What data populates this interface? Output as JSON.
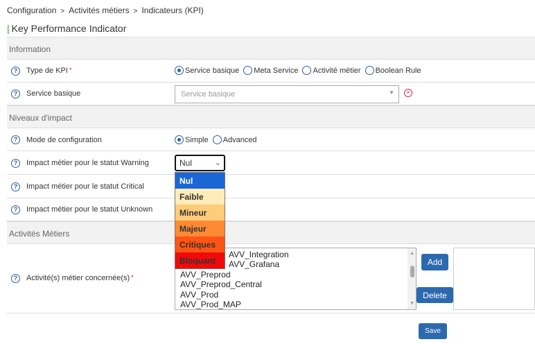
{
  "breadcrumb": [
    "Configuration",
    "Activités métiers",
    "Indicateurs (KPI)"
  ],
  "page_title": "Key Performance Indicator",
  "sections": {
    "information": "Information",
    "impact": "Niveaux d'impact",
    "activites": "Activités Métiers"
  },
  "type_kpi": {
    "label": "Type de KPI",
    "options": [
      "Service basique",
      "Meta Service",
      "Activité métier",
      "Boolean Rule"
    ],
    "selected": "Service basique"
  },
  "service_basique": {
    "label": "Service basique",
    "placeholder": "Service basique"
  },
  "mode": {
    "label": "Mode de configuration",
    "options": [
      "Simple",
      "Advanced"
    ],
    "selected": "Simple"
  },
  "warning": {
    "label": "Impact métier pour le statut Warning",
    "value": "Nul"
  },
  "critical": {
    "label": "Impact métier pour le statut Critical"
  },
  "unknown": {
    "label": "Impact métier pour le statut Unknown"
  },
  "impact_options": [
    {
      "label": "Nul",
      "color": "#1a66d6",
      "text": "#ffffff"
    },
    {
      "label": "Faible",
      "color": "#ffecb8",
      "text": "#333333"
    },
    {
      "label": "Mineur",
      "color": "#ffcc7a",
      "text": "#333333"
    },
    {
      "label": "Majeur",
      "color": "#ff8a33",
      "text": "#333333"
    },
    {
      "label": "Critiques",
      "color": "#ff5414",
      "text": "#333333"
    },
    {
      "label": "Bloquant",
      "color": "#f00a0a",
      "text": "#333333"
    }
  ],
  "activites": {
    "label": "Activité(s) métier concernée(s)",
    "items": [
      "AVV_Integration",
      "AVV_Grafana",
      "AVV_Preprod",
      "AVV_Preprod_Central",
      "AVV_Prod",
      "AVV_Prod_MAP"
    ],
    "add": "Add",
    "delete": "Delete"
  },
  "save": "Save"
}
